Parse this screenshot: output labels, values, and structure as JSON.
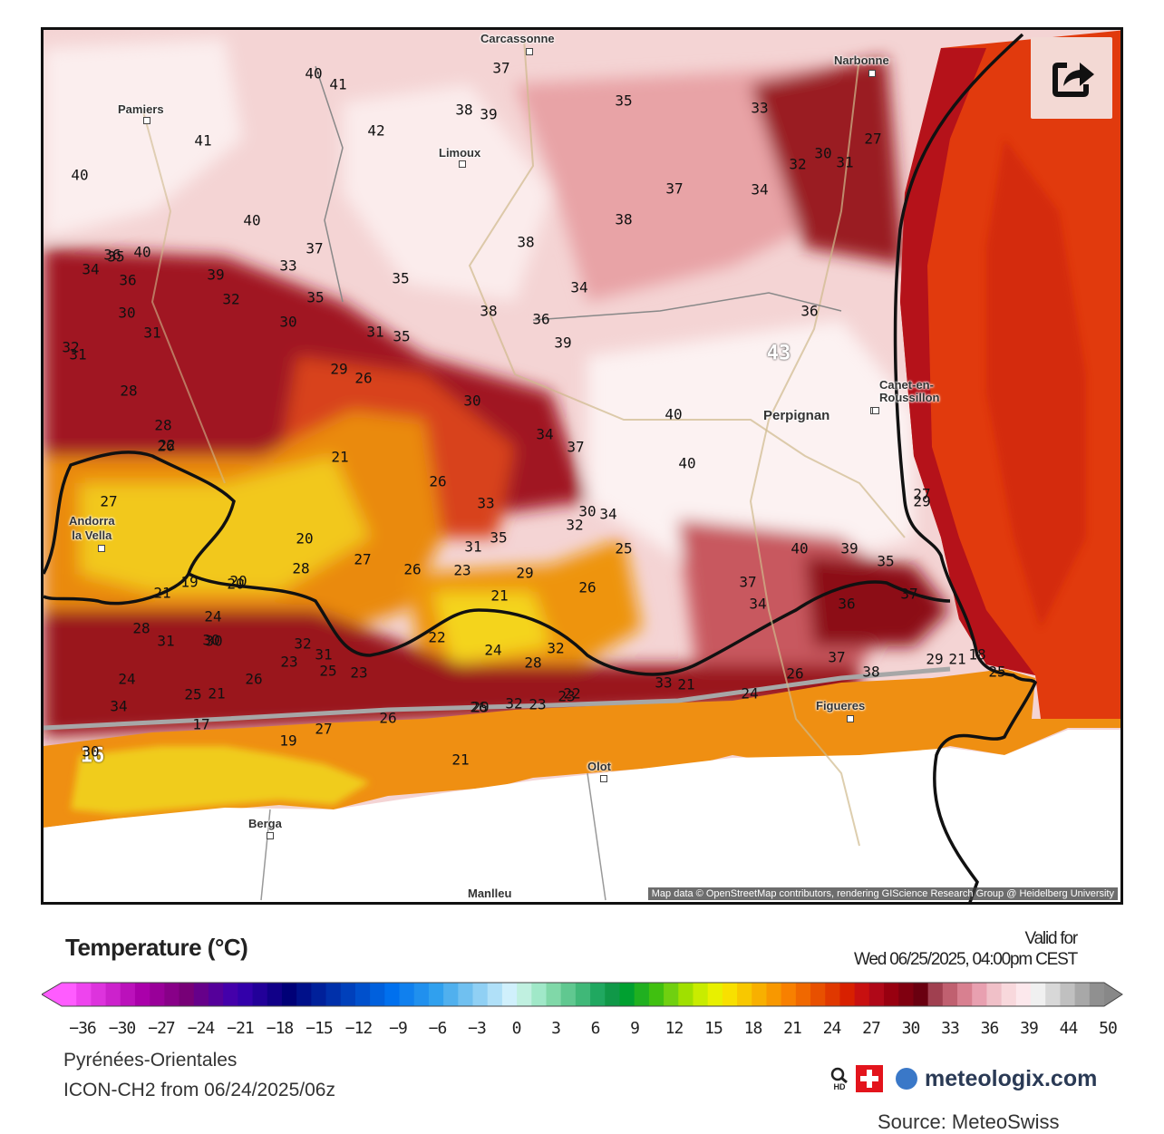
{
  "share_icon": "share-icon",
  "map": {
    "attribution": "Map data © OpenStreetMap contributors, rendering GIScience Research Group @ Heidelberg University",
    "cities": [
      {
        "id": "carcassonne",
        "name": "Carcassonne"
      },
      {
        "id": "narbonne",
        "name": "Narbonne"
      },
      {
        "id": "pamiers",
        "name": "Pamiers"
      },
      {
        "id": "limoux",
        "name": "Limoux"
      },
      {
        "id": "perpignan",
        "name": "Perpignan"
      },
      {
        "id": "canet",
        "name": "Canet-en-\nRoussillon"
      },
      {
        "id": "andorra",
        "name": "Andorra\nla Vella"
      },
      {
        "id": "figueres",
        "name": "Figueres"
      },
      {
        "id": "olot",
        "name": "Olot"
      },
      {
        "id": "berga",
        "name": "Berga"
      },
      {
        "id": "manlleu",
        "name": "Manlleu"
      }
    ],
    "temperature_labels": [
      "37",
      "40",
      "41",
      "35",
      "33",
      "27",
      "32",
      "30",
      "31",
      "38",
      "39",
      "42",
      "34",
      "41",
      "40",
      "37",
      "40",
      "38",
      "38",
      "37",
      "33",
      "35",
      "40",
      "36",
      "34",
      "36",
      "39",
      "32",
      "35",
      "36",
      "30",
      "31",
      "34",
      "35",
      "38",
      "36",
      "43",
      "30",
      "32",
      "31",
      "29",
      "26",
      "39",
      "31",
      "35",
      "28",
      "30",
      "40",
      "28",
      "26",
      "22",
      "21",
      "34",
      "37",
      "26",
      "40",
      "29",
      "20",
      "27",
      "33",
      "30",
      "34",
      "35",
      "32",
      "31",
      "25",
      "40",
      "39",
      "35",
      "20",
      "28",
      "27",
      "26",
      "23",
      "29",
      "26",
      "37",
      "34",
      "36",
      "37",
      "21",
      "19",
      "20",
      "21",
      "24",
      "30",
      "22",
      "31",
      "24",
      "28",
      "30",
      "32",
      "32",
      "28",
      "26",
      "25",
      "21",
      "29",
      "23",
      "27",
      "31",
      "33",
      "21",
      "24",
      "26",
      "38",
      "37",
      "34",
      "23",
      "26",
      "24",
      "25",
      "17",
      "19",
      "27",
      "26",
      "29",
      "32",
      "23",
      "22",
      "25",
      "21",
      "23",
      "18",
      "16",
      "30",
      "21"
    ],
    "legend_colors": {
      "hot": "#8b0a14",
      "coast_sea": "#e23a0c",
      "mountain_yellow": "#f2d21c"
    }
  },
  "legend": {
    "title": "Temperature (°C)",
    "valid_for_label": "Valid for",
    "valid_time": "Wed 06/25/2025, 04:00pm CEST",
    "ticks": [
      "−36",
      "−30",
      "−27",
      "−24",
      "−21",
      "−18",
      "−15",
      "−12",
      "−9",
      "−6",
      "−3",
      "0",
      "3",
      "6",
      "9",
      "12",
      "15",
      "18",
      "21",
      "24",
      "27",
      "30",
      "33",
      "36",
      "39",
      "44",
      "50"
    ],
    "region": "Pyrénées-Orientales",
    "model_run": "ICON-CH2 from 06/24/2025/06z",
    "brand": "meteologix.com",
    "brand_badge": "HD",
    "source": "Source: MeteoSwiss"
  }
}
